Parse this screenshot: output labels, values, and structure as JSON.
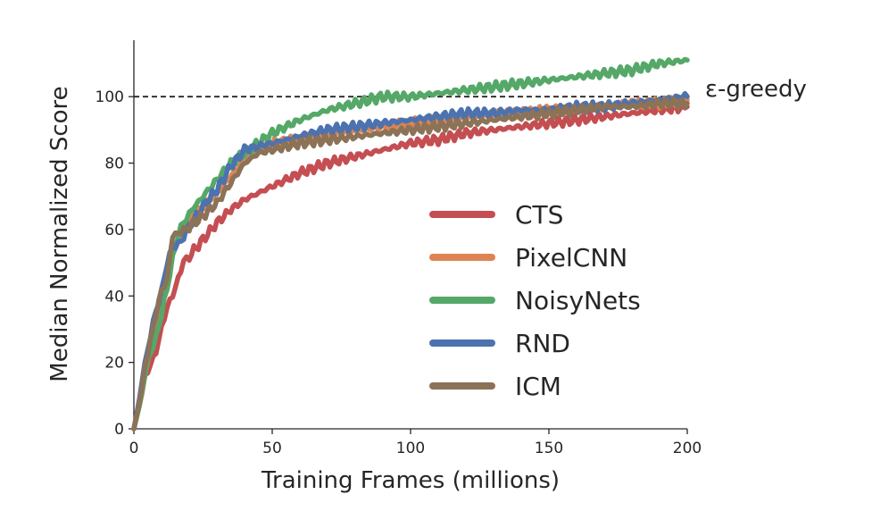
{
  "chart_data": {
    "type": "line",
    "xlabel": "Training Frames (millions)",
    "ylabel": "Median Normalized Score",
    "xlim": [
      0,
      200
    ],
    "ylim": [
      0,
      117
    ],
    "xticks": [
      0,
      50,
      100,
      150,
      200
    ],
    "yticks": [
      0,
      20,
      40,
      60,
      80,
      100
    ],
    "grid": false,
    "legend_position": "center-right",
    "reference_line": {
      "y": 100,
      "label": "ε-greedy",
      "style": "dashed",
      "color": "#262626"
    },
    "series": [
      {
        "name": "CTS",
        "color": "#c44e52",
        "x": [
          0,
          2,
          4,
          6,
          8,
          10,
          12,
          14,
          16,
          18,
          20,
          25,
          30,
          35,
          40,
          45,
          50,
          60,
          70,
          80,
          90,
          100,
          110,
          120,
          130,
          140,
          150,
          160,
          170,
          180,
          190,
          200
        ],
        "y": [
          0,
          7,
          15,
          19,
          24,
          30,
          36,
          41,
          45,
          50,
          52,
          57,
          62,
          66,
          69,
          71,
          73,
          77,
          80,
          82,
          84,
          86,
          87,
          89,
          90,
          91,
          92,
          93,
          94,
          95,
          96,
          97
        ]
      },
      {
        "name": "PixelCNN",
        "color": "#dd8452",
        "x": [
          0,
          2,
          4,
          6,
          8,
          10,
          12,
          14,
          16,
          18,
          20,
          25,
          30,
          35,
          40,
          45,
          50,
          60,
          70,
          80,
          90,
          100,
          110,
          120,
          130,
          140,
          150,
          160,
          170,
          180,
          190,
          200
        ],
        "y": [
          0,
          8,
          17,
          25,
          32,
          38,
          44,
          52,
          57,
          60,
          63,
          67,
          71,
          76,
          81,
          84,
          86,
          87,
          89,
          90,
          91,
          92,
          93,
          94,
          95,
          95,
          96,
          96,
          97,
          98,
          98,
          99
        ]
      },
      {
        "name": "NoisyNets",
        "color": "#55a868",
        "x": [
          0,
          2,
          4,
          6,
          8,
          10,
          12,
          14,
          16,
          18,
          20,
          25,
          30,
          35,
          40,
          45,
          50,
          60,
          70,
          80,
          90,
          100,
          110,
          120,
          130,
          140,
          150,
          160,
          170,
          180,
          190,
          200
        ],
        "y": [
          0,
          7,
          16,
          23,
          28,
          34,
          42,
          52,
          58,
          62,
          65,
          70,
          75,
          80,
          83,
          86,
          89,
          93,
          96,
          98,
          100,
          100,
          101,
          102,
          103,
          104,
          105,
          106,
          107,
          108,
          110,
          111
        ]
      },
      {
        "name": "RND",
        "color": "#4c72b0",
        "x": [
          0,
          2,
          4,
          6,
          8,
          10,
          12,
          14,
          16,
          18,
          20,
          25,
          30,
          35,
          40,
          45,
          50,
          60,
          70,
          80,
          90,
          100,
          110,
          120,
          130,
          140,
          150,
          160,
          170,
          180,
          190,
          200
        ],
        "y": [
          0,
          9,
          20,
          28,
          35,
          42,
          50,
          54,
          56,
          58,
          61,
          67,
          72,
          79,
          84,
          85,
          86,
          88,
          90,
          91,
          92,
          93,
          94,
          95,
          95,
          96,
          96,
          97,
          97,
          98,
          99,
          100
        ]
      },
      {
        "name": "ICM",
        "color": "#8c7256",
        "x": [
          0,
          2,
          4,
          6,
          8,
          10,
          12,
          14,
          16,
          18,
          20,
          25,
          30,
          35,
          40,
          45,
          50,
          60,
          70,
          80,
          90,
          100,
          110,
          120,
          130,
          140,
          150,
          160,
          170,
          180,
          190,
          200
        ],
        "y": [
          0,
          8,
          18,
          27,
          35,
          41,
          45,
          59,
          58,
          60,
          61,
          64,
          68,
          74,
          80,
          83,
          84,
          86,
          87,
          88,
          89,
          90,
          91,
          92,
          93,
          94,
          95,
          96,
          97,
          97,
          98,
          98
        ]
      }
    ]
  }
}
